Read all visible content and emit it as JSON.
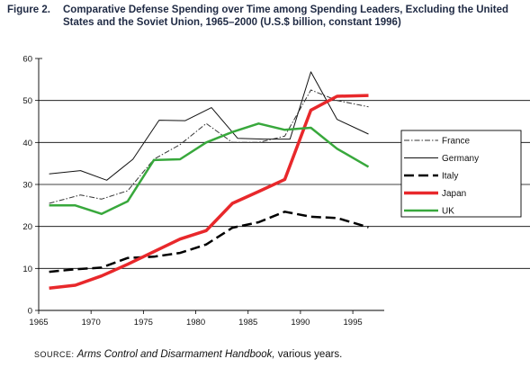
{
  "figure": {
    "label": "Figure 2.",
    "title": "Comparative Defense Spending over Time among Spending Leaders, Excluding the United States and the Soviet Union, 1965–2000 (U.S.$ billion, constant 1996)"
  },
  "source": {
    "label": "SOURCE:",
    "title": "Arms Control and Disarmament Handbook,",
    "rest": "various years."
  },
  "colors": {
    "france": "#333333",
    "germany": "#111111",
    "italy": "#000000",
    "japan": "#e8282b",
    "uk": "#38a83c"
  },
  "chart_data": {
    "type": "line",
    "title": "Comparative Defense Spending over Time among Spending Leaders, Excluding the United States and the Soviet Union, 1965–2000 (U.S.$ billion, constant 1996)",
    "xlabel": "",
    "ylabel": "",
    "xlim": [
      1965,
      1998
    ],
    "ylim": [
      0,
      60
    ],
    "xticks": [
      1965,
      1970,
      1975,
      1980,
      1985,
      1990,
      1995
    ],
    "yticks": [
      0,
      10,
      20,
      30,
      40,
      50,
      60
    ],
    "grid": "horizontal",
    "legend_position": "right",
    "series": [
      {
        "name": "France",
        "style": "dashdot",
        "color": "#333333",
        "width": 1,
        "x": [
          1966,
          1969,
          1971,
          1973.5,
          1976,
          1978.5,
          1981,
          1983.5,
          1986,
          1988.5,
          1991,
          1993.5,
          1996.5
        ],
        "y": [
          25.5,
          27.5,
          26.5,
          28.5,
          36,
          39.5,
          44.5,
          40,
          40,
          41.5,
          52.5,
          50,
          48.5
        ]
      },
      {
        "name": "Germany",
        "style": "solid",
        "color": "#111111",
        "width": 1,
        "x": [
          1966,
          1969,
          1971.5,
          1974,
          1976.5,
          1979,
          1981.5,
          1984,
          1986.5,
          1989,
          1991,
          1993.5,
          1996.5
        ],
        "y": [
          32.5,
          33.3,
          31,
          36,
          45.3,
          45.2,
          48.3,
          41,
          40.8,
          40.8,
          56.8,
          45.5,
          42
        ]
      },
      {
        "name": "Italy",
        "style": "longdash",
        "color": "#000000",
        "width": 2.5,
        "x": [
          1966,
          1968.5,
          1971,
          1973.5,
          1976,
          1978.5,
          1981,
          1983.5,
          1986,
          1988.5,
          1991,
          1993.5,
          1996.5
        ],
        "y": [
          9.2,
          9.8,
          10.2,
          12.5,
          12.8,
          13.7,
          15.7,
          19.7,
          21,
          23.5,
          22.3,
          22,
          19.8
        ]
      },
      {
        "name": "Japan",
        "style": "solid",
        "color": "#e8282b",
        "width": 3.5,
        "x": [
          1966,
          1968.5,
          1971,
          1973.5,
          1976,
          1978.5,
          1981,
          1983.5,
          1986,
          1988.5,
          1991,
          1993.5,
          1996.5
        ],
        "y": [
          5.3,
          6,
          8.2,
          11,
          14,
          17,
          19,
          25.5,
          28.3,
          31.2,
          47.7,
          51,
          51.2
        ]
      },
      {
        "name": "UK",
        "style": "solid",
        "color": "#38a83c",
        "width": 2.5,
        "x": [
          1966,
          1968.5,
          1971,
          1973.5,
          1976,
          1978.5,
          1981,
          1983.5,
          1986,
          1988.5,
          1991,
          1993.5,
          1996.5
        ],
        "y": [
          25,
          25,
          23,
          26,
          35.8,
          36,
          40,
          42.5,
          44.5,
          43,
          43.5,
          38.5,
          34.2
        ]
      }
    ]
  }
}
